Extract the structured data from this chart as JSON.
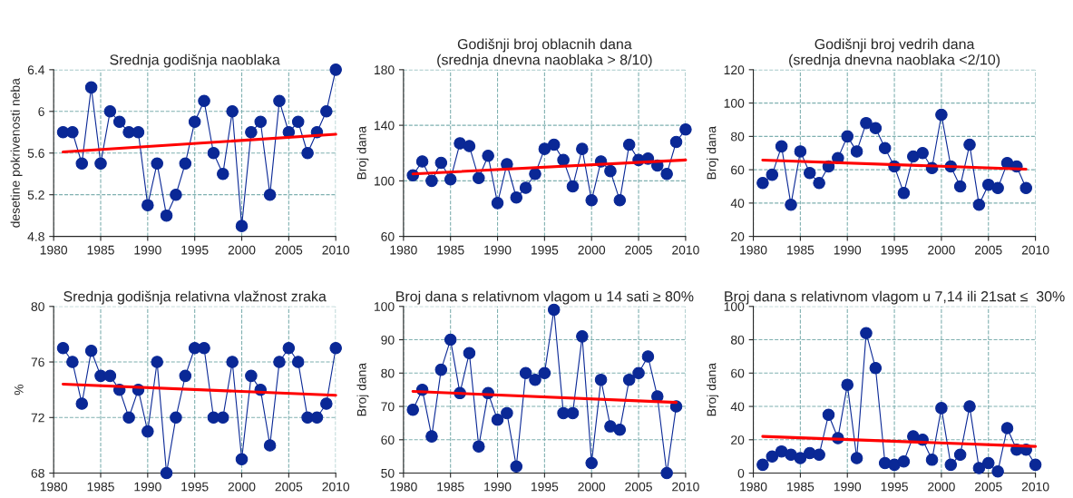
{
  "chart_data": [
    {
      "type": "line",
      "title": "Srednja godišnja naoblaka",
      "ylabel": "desetine pokrivenosti neba",
      "xlim": [
        1980,
        2010
      ],
      "xticks": [
        1980,
        1985,
        1990,
        1995,
        2000,
        2005,
        2010
      ],
      "ylim": [
        4.8,
        6.4
      ],
      "yticks": [
        4.8,
        5.2,
        5.6,
        6,
        6.4
      ],
      "grid": true,
      "marker": "circle",
      "line_style": "solid",
      "series": [
        {
          "color": "#0a2896",
          "x": [
            1981,
            1982,
            1983,
            1984,
            1985,
            1986,
            1987,
            1988,
            1989,
            1990,
            1991,
            1992,
            1993,
            1994,
            1995,
            1996,
            1997,
            1998,
            1999,
            2000,
            2001,
            2002,
            2003,
            2004,
            2005,
            2006,
            2007,
            2008,
            2009,
            2010
          ],
          "values": [
            5.8,
            5.8,
            5.5,
            6.23,
            5.5,
            6.0,
            5.9,
            5.8,
            5.8,
            5.1,
            5.5,
            5.0,
            5.2,
            5.5,
            5.9,
            6.1,
            5.6,
            5.4,
            6.0,
            4.9,
            5.8,
            5.9,
            5.2,
            6.1,
            5.8,
            5.9,
            5.6,
            5.8,
            6.0,
            6.4
          ]
        },
        {
          "type": "line",
          "marker": "none",
          "color": "#ff0000",
          "x": [
            1981,
            2010
          ],
          "values": [
            5.61,
            5.78
          ]
        }
      ]
    },
    {
      "type": "line",
      "title": "Godišnji broj oblacnih dana\n(srednja dnevna naoblaka > 8/10)",
      "ylabel": "Broj dana",
      "xlim": [
        1980,
        2010
      ],
      "xticks": [
        1980,
        1985,
        1990,
        1995,
        2000,
        2005,
        2010
      ],
      "ylim": [
        60,
        180
      ],
      "yticks": [
        60,
        100,
        140,
        180
      ],
      "grid": true,
      "marker": "circle",
      "line_style": "solid",
      "series": [
        {
          "color": "#0a2896",
          "x": [
            1981,
            1982,
            1983,
            1984,
            1985,
            1986,
            1987,
            1988,
            1989,
            1990,
            1991,
            1992,
            1993,
            1994,
            1995,
            1996,
            1997,
            1998,
            1999,
            2000,
            2001,
            2002,
            2003,
            2004,
            2005,
            2006,
            2007,
            2008,
            2009,
            2010
          ],
          "values": [
            104,
            114,
            100,
            113,
            101,
            127,
            125,
            102,
            118,
            84,
            112,
            88,
            95,
            105,
            123,
            126,
            115,
            96,
            123,
            86,
            114,
            107,
            86,
            126,
            115,
            116,
            111,
            105,
            128,
            137
          ]
        },
        {
          "type": "line",
          "marker": "none",
          "color": "#ff0000",
          "x": [
            1981,
            2010
          ],
          "values": [
            105,
            115
          ]
        }
      ]
    },
    {
      "type": "line",
      "title": "Godišnji broj vedrih dana\n(srednja dnevna naoblaka <2/10)",
      "ylabel": "Broj dana",
      "xlim": [
        1980,
        2010
      ],
      "xticks": [
        1980,
        1985,
        1990,
        1995,
        2000,
        2005,
        2010
      ],
      "ylim": [
        20,
        120
      ],
      "yticks": [
        20,
        40,
        60,
        80,
        100,
        120
      ],
      "grid": true,
      "marker": "circle",
      "line_style": "solid",
      "series": [
        {
          "color": "#0a2896",
          "x": [
            1981,
            1982,
            1983,
            1984,
            1985,
            1986,
            1987,
            1988,
            1989,
            1990,
            1991,
            1992,
            1993,
            1994,
            1995,
            1996,
            1997,
            1998,
            1999,
            2000,
            2001,
            2002,
            2003,
            2004,
            2005,
            2006,
            2007,
            2008,
            2009
          ],
          "values": [
            52,
            57,
            74,
            39,
            71,
            58,
            52,
            62,
            67,
            80,
            71,
            88,
            85,
            73,
            62,
            46,
            68,
            70,
            61,
            93,
            62,
            50,
            75,
            39,
            51,
            49,
            64,
            62,
            49
          ]
        },
        {
          "type": "line",
          "marker": "none",
          "color": "#ff0000",
          "x": [
            1981,
            2009
          ],
          "values": [
            65.8,
            60.3
          ]
        }
      ]
    },
    {
      "type": "line",
      "title": "Srednja godišnja relativna vlažnost zraka",
      "ylabel": "%",
      "xlim": [
        1980,
        2010
      ],
      "xticks": [
        1980,
        1985,
        1990,
        1995,
        2000,
        2005,
        2010
      ],
      "ylim": [
        68,
        80
      ],
      "yticks": [
        68,
        72,
        76,
        80
      ],
      "grid": true,
      "marker": "circle",
      "line_style": "solid",
      "series": [
        {
          "color": "#0a2896",
          "x": [
            1981,
            1982,
            1983,
            1984,
            1985,
            1986,
            1987,
            1988,
            1989,
            1990,
            1991,
            1992,
            1993,
            1994,
            1995,
            1996,
            1997,
            1998,
            1999,
            2000,
            2001,
            2002,
            2003,
            2004,
            2005,
            2006,
            2007,
            2008,
            2009,
            2010
          ],
          "values": [
            77,
            76,
            73,
            76.8,
            75,
            75,
            74,
            72,
            74,
            71,
            76,
            68,
            72,
            75,
            77,
            77,
            72,
            72,
            76,
            69,
            75,
            74,
            70,
            76,
            77,
            76,
            72,
            72,
            73,
            77
          ]
        },
        {
          "type": "line",
          "marker": "none",
          "color": "#ff0000",
          "x": [
            1981,
            2010
          ],
          "values": [
            74.4,
            73.6
          ]
        }
      ]
    },
    {
      "type": "line",
      "title": "Broj dana s relativnom vlagom u 14 sati ≥ 80%",
      "ylabel": "Broj dana",
      "xlim": [
        1980,
        2010
      ],
      "xticks": [
        1980,
        1985,
        1990,
        1995,
        2000,
        2005,
        2010
      ],
      "ylim": [
        50,
        100
      ],
      "yticks": [
        50,
        60,
        70,
        80,
        90,
        100
      ],
      "grid": true,
      "marker": "circle",
      "line_style": "solid",
      "series": [
        {
          "color": "#0a2896",
          "x": [
            1981,
            1982,
            1983,
            1984,
            1985,
            1986,
            1987,
            1988,
            1989,
            1990,
            1991,
            1992,
            1993,
            1994,
            1995,
            1996,
            1997,
            1998,
            1999,
            2000,
            2001,
            2002,
            2003,
            2004,
            2005,
            2006,
            2007,
            2008,
            2009
          ],
          "values": [
            69,
            75,
            61,
            81,
            90,
            74,
            86,
            58,
            74,
            66,
            68,
            52,
            80,
            78,
            80,
            99,
            68,
            68,
            91,
            53,
            78,
            64,
            63,
            78,
            80,
            85,
            73,
            50,
            70
          ]
        },
        {
          "type": "line",
          "marker": "none",
          "color": "#ff0000",
          "x": [
            1981,
            2009
          ],
          "values": [
            74.5,
            71.2
          ]
        }
      ]
    },
    {
      "type": "line",
      "title": "Broj dana s relativnom vlagom u 7,14 ili 21sat ≤  30%",
      "ylabel": "Broj dana",
      "xlim": [
        1980,
        2010
      ],
      "xticks": [
        1980,
        1985,
        1990,
        1995,
        2000,
        2005,
        2010
      ],
      "ylim": [
        0,
        100
      ],
      "yticks": [
        0,
        20,
        40,
        60,
        80,
        100
      ],
      "grid": true,
      "marker": "circle",
      "line_style": "solid",
      "series": [
        {
          "color": "#0a2896",
          "x": [
            1981,
            1982,
            1983,
            1984,
            1985,
            1986,
            1987,
            1988,
            1989,
            1990,
            1991,
            1992,
            1993,
            1994,
            1995,
            1996,
            1997,
            1998,
            1999,
            2000,
            2001,
            2002,
            2003,
            2004,
            2005,
            2006,
            2007,
            2008,
            2009,
            2010
          ],
          "values": [
            5,
            10,
            13,
            11,
            9,
            12,
            11,
            35,
            21,
            53,
            9,
            84,
            63,
            6,
            5,
            7,
            22,
            20,
            8,
            39,
            5,
            11,
            40,
            3,
            6,
            1,
            27,
            14,
            14,
            5
          ]
        },
        {
          "type": "line",
          "marker": "none",
          "color": "#ff0000",
          "x": [
            1981,
            2010
          ],
          "values": [
            22,
            16
          ]
        }
      ]
    }
  ]
}
